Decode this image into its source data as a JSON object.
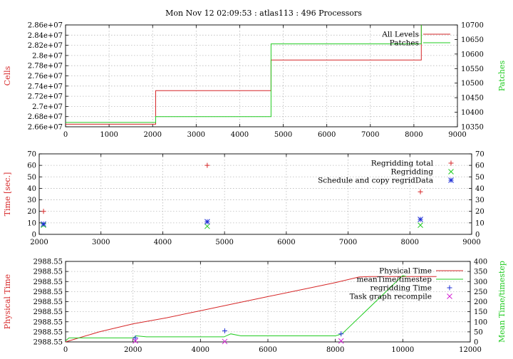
{
  "title": "Mon Nov 12 02:09:53 : atlas113 : 496 Processors",
  "colors": {
    "red": "#d62728",
    "green": "#22cc22",
    "blue": "#1f2fd6",
    "magenta": "#d21fd2",
    "grid": "#b8b8b8",
    "axis": "#000000"
  },
  "chart_data": [
    {
      "type": "line",
      "xlabel": "",
      "ylabel": "Cells",
      "y2label": "Patches",
      "xlim": [
        0,
        9000
      ],
      "ylim": [
        26600000,
        28600000
      ],
      "y2lim": [
        10350,
        10700
      ],
      "x_ticks": [
        "0",
        "1000",
        "2000",
        "3000",
        "4000",
        "5000",
        "6000",
        "7000",
        "8000",
        "9000"
      ],
      "y_ticks": [
        "2.66e+07",
        "2.68e+07",
        "2.7e+07",
        "2.72e+07",
        "2.74e+07",
        "2.76e+07",
        "2.78e+07",
        "2.8e+07",
        "2.82e+07",
        "2.84e+07",
        "2.86e+07"
      ],
      "y2_ticks": [
        "10350",
        "10400",
        "10450",
        "10500",
        "10550",
        "10600",
        "10650",
        "10700"
      ],
      "grid": true,
      "legend_position": "top-right",
      "series": [
        {
          "name": "All Levels",
          "axis": "left",
          "color": "red",
          "step": true,
          "points": [
            [
              0,
              26650000
            ],
            [
              2070,
              26650000
            ],
            [
              2070,
              27310000
            ],
            [
              4720,
              27310000
            ],
            [
              4720,
              27910000
            ],
            [
              8170,
              27910000
            ],
            [
              8170,
              28600000
            ]
          ]
        },
        {
          "name": "Patches",
          "axis": "right",
          "color": "green",
          "step": true,
          "points": [
            [
              0,
              10365
            ],
            [
              2070,
              10365
            ],
            [
              2070,
              10385
            ],
            [
              4720,
              10385
            ],
            [
              4720,
              10635
            ],
            [
              8170,
              10635
            ],
            [
              8170,
              10700
            ]
          ]
        }
      ]
    },
    {
      "type": "scatter",
      "xlabel": "",
      "ylabel": "Time [sec.]",
      "xlim": [
        2000,
        9000
      ],
      "ylim": [
        0,
        70
      ],
      "y2lim": [
        0,
        70
      ],
      "x_ticks": [
        "2000",
        "3000",
        "4000",
        "5000",
        "6000",
        "7000",
        "8000",
        "9000"
      ],
      "y_ticks": [
        "0",
        "10",
        "20",
        "30",
        "40",
        "50",
        "60",
        "70"
      ],
      "y2_ticks": [
        "0",
        "10",
        "20",
        "30",
        "40",
        "50",
        "60",
        "70"
      ],
      "grid": true,
      "legend_position": "top-right",
      "series": [
        {
          "name": "Regridding total",
          "marker": "+",
          "color": "red",
          "points": [
            [
              2070,
              20
            ],
            [
              4720,
              60
            ],
            [
              8170,
              37
            ]
          ]
        },
        {
          "name": "Regridding",
          "marker": "x",
          "color": "green",
          "points": [
            [
              2070,
              8
            ],
            [
              4720,
              7
            ],
            [
              8170,
              8
            ]
          ]
        },
        {
          "name": "Schedule and copy regridData",
          "marker": "*",
          "color": "blue",
          "points": [
            [
              2070,
              9
            ],
            [
              4720,
              11
            ],
            [
              8170,
              13
            ]
          ]
        }
      ]
    },
    {
      "type": "line",
      "xlabel": "",
      "ylabel": "Physical Time",
      "y2label": "Mean Time/timestep",
      "xlim": [
        0,
        12000
      ],
      "ylim": [
        0,
        8
      ],
      "y2lim": [
        0,
        400
      ],
      "x_ticks": [
        "0",
        "2000",
        "4000",
        "6000",
        "8000",
        "10000",
        "12000"
      ],
      "y_ticks": [
        "2988.55",
        "2988.55",
        "2988.55",
        "2988.55",
        "2988.55",
        "2988.55",
        "2988.55",
        "2988.55",
        "2988.55"
      ],
      "y2_ticks": [
        "0",
        "50",
        "100",
        "150",
        "200",
        "250",
        "300",
        "350",
        "400"
      ],
      "grid": true,
      "legend_position": "top-right",
      "series": [
        {
          "name": "Physical Time",
          "axis": "left",
          "color": "red",
          "points": [
            [
              0,
              0
            ],
            [
              500,
              0.5
            ],
            [
              1000,
              1.0
            ],
            [
              2000,
              1.8
            ],
            [
              3000,
              2.4
            ],
            [
              4000,
              3.1
            ],
            [
              5000,
              3.8
            ],
            [
              6000,
              4.5
            ],
            [
              7000,
              5.2
            ],
            [
              8000,
              5.9
            ],
            [
              8700,
              6.45
            ],
            [
              9000,
              6.5
            ],
            [
              10000,
              6.5
            ],
            [
              11000,
              6.5
            ]
          ]
        },
        {
          "name": "meanTime/timestep",
          "axis": "right",
          "color": "green",
          "points": [
            [
              0,
              5
            ],
            [
              100,
              20
            ],
            [
              2000,
              20
            ],
            [
              2100,
              30
            ],
            [
              2400,
              25
            ],
            [
              4700,
              25
            ],
            [
              4900,
              40
            ],
            [
              5200,
              30
            ],
            [
              8000,
              30
            ],
            [
              8200,
              40
            ],
            [
              10000,
              330
            ],
            [
              10100,
              325
            ]
          ]
        },
        {
          "name": "regridding Time",
          "axis": "right",
          "marker": "+",
          "color": "blue",
          "points": [
            [
              2070,
              20
            ],
            [
              4720,
              55
            ],
            [
              8170,
              40
            ]
          ]
        },
        {
          "name": "Task graph recompile",
          "axis": "right",
          "marker": "x",
          "color": "magenta",
          "points": [
            [
              2070,
              5
            ],
            [
              4720,
              2
            ],
            [
              8170,
              5
            ]
          ]
        }
      ]
    }
  ]
}
